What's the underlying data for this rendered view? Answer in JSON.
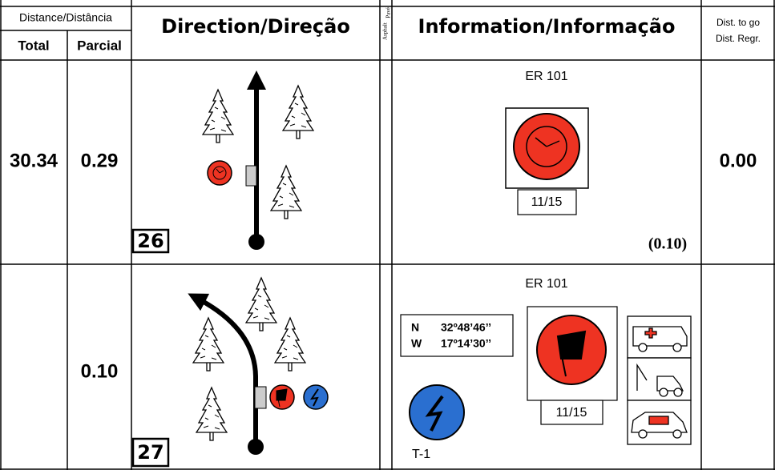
{
  "header": {
    "distance": "Distance/Distância",
    "total": "Total",
    "partial": "Parcial",
    "direction": "Direction/Direção",
    "surface": [
      "Asphalt",
      "Pavé"
    ],
    "information": "Information/Informação",
    "dist_to_go": [
      "Dist. to go",
      "Dist. Regr."
    ]
  },
  "rows": [
    {
      "total": "30.34",
      "partial": "0.29",
      "number": "26",
      "road": "ER 101",
      "time_label": "11/15",
      "info_distance": "(0.10)",
      "dist_to_go": "0.00"
    },
    {
      "partial": "0.10",
      "number": "27",
      "road": "ER 101",
      "coords": {
        "lat_dir": "N",
        "lat": "32º48’46’’",
        "lon_dir": "W",
        "lon": "17º14’30’’"
      },
      "time_label": "11/15",
      "stage": "T-1"
    }
  ]
}
